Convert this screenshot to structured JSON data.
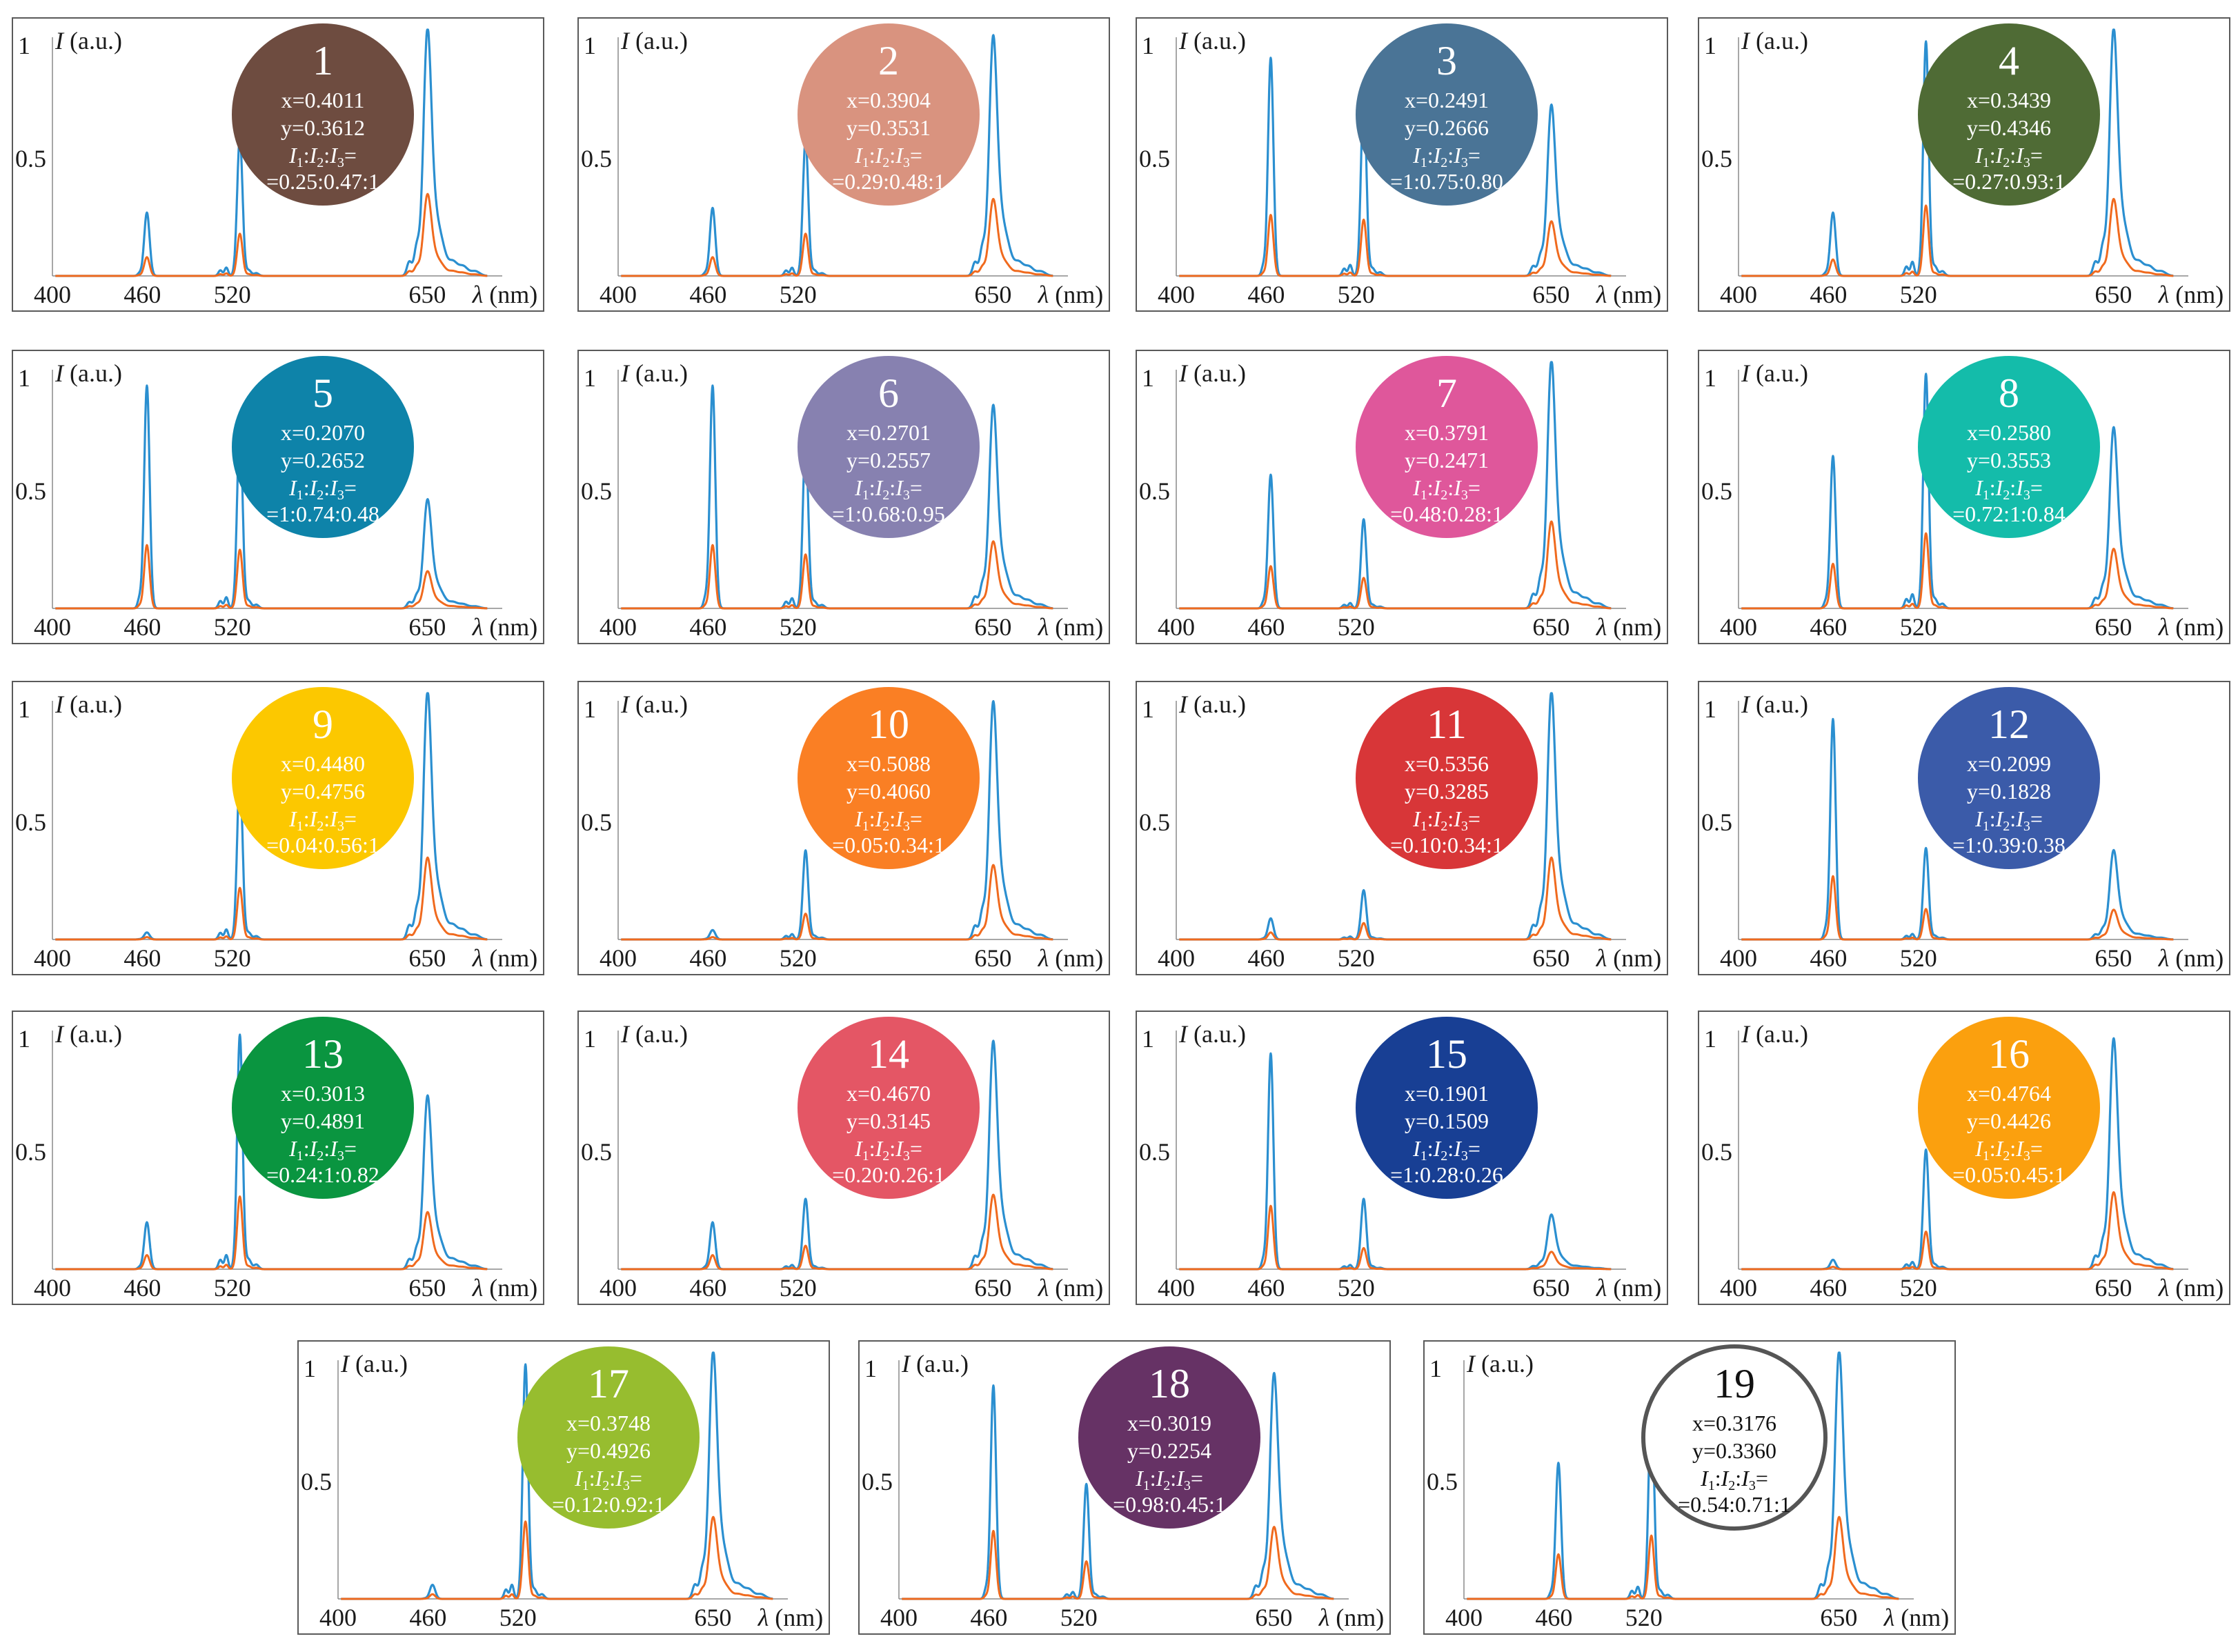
{
  "figure": {
    "y_axis_label": "I (a.u.)",
    "y_axis_label_var": "I",
    "y_axis_label_unit": " (a.u.)",
    "x_axis_label_var": "λ",
    "x_axis_label_unit": " (nm)",
    "y_ticks": [
      "1",
      "0.5"
    ],
    "x_ticks": [
      "400",
      "460",
      "520",
      "650"
    ],
    "ratio_label_symbol": "I",
    "ratio_label_indices": [
      "1",
      "2",
      "3"
    ],
    "ratio_label_suffix": "=",
    "series_colors": {
      "main": "#2b8fd0",
      "secondary": "#f06a1e"
    }
  },
  "chart_data": [
    {
      "type": "line",
      "id": "1",
      "x_label": "x=0.4011",
      "y_label": "y=0.3612",
      "ratio": "=0.25:0.47:1",
      "color": "#6e4c40",
      "text_color": "#ffffff",
      "peaks": {
        "blue": [
          0.27,
          0.59,
          1.0
        ],
        "orange": [
          0.08,
          0.18,
          0.33
        ]
      },
      "xlim": [
        400,
        700
      ],
      "ylim": [
        0,
        1
      ]
    },
    {
      "type": "line",
      "id": "2",
      "x_label": "x=0.3904",
      "y_label": "y=0.3531",
      "ratio": "=0.29:0.48:1",
      "color": "#d9937f",
      "text_color": "#ffffff",
      "peaks": {
        "blue": [
          0.29,
          0.58,
          0.97
        ],
        "orange": [
          0.08,
          0.18,
          0.31
        ]
      },
      "xlim": [
        400,
        700
      ],
      "ylim": [
        0,
        1
      ]
    },
    {
      "type": "line",
      "id": "3",
      "x_label": "x=0.2491",
      "y_label": "y=0.2666",
      "ratio": "=1:0.75:0.80",
      "color": "#4a7496",
      "text_color": "#ffffff",
      "peaks": {
        "blue": [
          0.93,
          0.78,
          0.69
        ],
        "orange": [
          0.26,
          0.24,
          0.22
        ]
      },
      "xlim": [
        400,
        700
      ],
      "ylim": [
        0,
        1
      ]
    },
    {
      "type": "line",
      "id": "4",
      "x_label": "x=0.3439",
      "y_label": "y=0.4346",
      "ratio": "=0.27:0.93:1",
      "color": "#4f6b35",
      "text_color": "#ffffff",
      "peaks": {
        "blue": [
          0.27,
          1.0,
          1.0
        ],
        "orange": [
          0.07,
          0.3,
          0.31
        ]
      },
      "xlim": [
        400,
        700
      ],
      "ylim": [
        0,
        1
      ]
    },
    {
      "type": "line",
      "id": "5",
      "x_label": "x=0.2070",
      "y_label": "y=0.2652",
      "ratio": "=1:0.74:0.48",
      "color": "#0e83a9",
      "text_color": "#ffffff",
      "peaks": {
        "blue": [
          0.95,
          0.79,
          0.44
        ],
        "orange": [
          0.27,
          0.25,
          0.15
        ]
      },
      "xlim": [
        400,
        700
      ],
      "ylim": [
        0,
        1
      ]
    },
    {
      "type": "line",
      "id": "6",
      "x_label": "x=0.2701",
      "y_label": "y=0.2557",
      "ratio": "=1:0.68:0.95",
      "color": "#8781b0",
      "text_color": "#ffffff",
      "peaks": {
        "blue": [
          0.95,
          0.72,
          0.82
        ],
        "orange": [
          0.27,
          0.23,
          0.27
        ]
      },
      "xlim": [
        400,
        700
      ],
      "ylim": [
        0,
        1
      ]
    },
    {
      "type": "line",
      "id": "7",
      "x_label": "x=0.3791",
      "y_label": "y=0.2471",
      "ratio": "=0.48:0.28:1",
      "color": "#df579b",
      "text_color": "#ffffff",
      "peaks": {
        "blue": [
          0.57,
          0.38,
          1.0
        ],
        "orange": [
          0.18,
          0.13,
          0.35
        ]
      },
      "xlim": [
        400,
        700
      ],
      "ylim": [
        0,
        1
      ]
    },
    {
      "type": "line",
      "id": "8",
      "x_label": "x=0.2580",
      "y_label": "y=0.3553",
      "ratio": "=0.72:1:0.84",
      "color": "#14bcaa",
      "text_color": "#ffffff",
      "peaks": {
        "blue": [
          0.65,
          1.0,
          0.73
        ],
        "orange": [
          0.19,
          0.32,
          0.24
        ]
      },
      "xlim": [
        400,
        700
      ],
      "ylim": [
        0,
        1
      ]
    },
    {
      "type": "line",
      "id": "9",
      "x_label": "x=0.4480",
      "y_label": "y=0.4756",
      "ratio": "=0.04:0.56:1",
      "color": "#fcc800",
      "text_color": "#ffffff",
      "peaks": {
        "blue": [
          0.03,
          0.71,
          1.0
        ],
        "orange": [
          0.01,
          0.22,
          0.33
        ]
      },
      "xlim": [
        400,
        700
      ],
      "ylim": [
        0,
        1
      ]
    },
    {
      "type": "line",
      "id": "10",
      "x_label": "x=0.5088",
      "y_label": "y=0.4060",
      "ratio": "=0.05:0.34:1",
      "color": "#fa7f24",
      "text_color": "#ffffff",
      "peaks": {
        "blue": [
          0.04,
          0.38,
          0.96
        ],
        "orange": [
          0.01,
          0.11,
          0.3
        ]
      },
      "xlim": [
        400,
        700
      ],
      "ylim": [
        0,
        1
      ]
    },
    {
      "type": "line",
      "id": "11",
      "x_label": "x=0.5356",
      "y_label": "y=0.3285",
      "ratio": "=0.10:0.34:1",
      "color": "#d83638",
      "text_color": "#ffffff",
      "peaks": {
        "blue": [
          0.09,
          0.21,
          1.0
        ],
        "orange": [
          0.03,
          0.07,
          0.33
        ]
      },
      "xlim": [
        400,
        700
      ],
      "ylim": [
        0,
        1
      ]
    },
    {
      "type": "line",
      "id": "12",
      "x_label": "x=0.2099",
      "y_label": "y=0.1828",
      "ratio": "=1:0.39:0.38",
      "color": "#3b5ba9",
      "text_color": "#ffffff",
      "peaks": {
        "blue": [
          0.94,
          0.39,
          0.36
        ],
        "orange": [
          0.27,
          0.13,
          0.12
        ]
      },
      "xlim": [
        400,
        700
      ],
      "ylim": [
        0,
        1
      ]
    },
    {
      "type": "line",
      "id": "13",
      "x_label": "x=0.3013",
      "y_label": "y=0.4891",
      "ratio": "=0.24:1:0.82",
      "color": "#0a9540",
      "text_color": "#ffffff",
      "peaks": {
        "blue": [
          0.2,
          1.0,
          0.7
        ],
        "orange": [
          0.06,
          0.31,
          0.23
        ]
      },
      "xlim": [
        400,
        700
      ],
      "ylim": [
        0,
        1
      ]
    },
    {
      "type": "line",
      "id": "14",
      "x_label": "x=0.4670",
      "y_label": "y=0.3145",
      "ratio": "=0.20:0.26:1",
      "color": "#e45665",
      "text_color": "#ffffff",
      "peaks": {
        "blue": [
          0.2,
          0.3,
          0.92
        ],
        "orange": [
          0.06,
          0.1,
          0.3
        ]
      },
      "xlim": [
        400,
        700
      ],
      "ylim": [
        0,
        1
      ]
    },
    {
      "type": "line",
      "id": "15",
      "x_label": "x=0.1901",
      "y_label": "y=0.1509",
      "ratio": "=1:0.28:0.26",
      "color": "#183f94",
      "text_color": "#ffffff",
      "peaks": {
        "blue": [
          0.92,
          0.3,
          0.22
        ],
        "orange": [
          0.27,
          0.09,
          0.07
        ]
      },
      "xlim": [
        400,
        700
      ],
      "ylim": [
        0,
        1
      ]
    },
    {
      "type": "line",
      "id": "16",
      "x_label": "x=0.4764",
      "y_label": "y=0.4426",
      "ratio": "=0.05:0.45:1",
      "color": "#fba00e",
      "text_color": "#ffffff",
      "peaks": {
        "blue": [
          0.04,
          0.51,
          0.93
        ],
        "orange": [
          0.01,
          0.16,
          0.31
        ]
      },
      "xlim": [
        400,
        700
      ],
      "ylim": [
        0,
        1
      ]
    },
    {
      "type": "line",
      "id": "17",
      "x_label": "x=0.3748",
      "y_label": "y=0.4926",
      "ratio": "=0.12:0.92:1",
      "color": "#97bd2f",
      "text_color": "#ffffff",
      "peaks": {
        "blue": [
          0.06,
          1.0,
          1.0
        ],
        "orange": [
          0.02,
          0.33,
          0.33
        ]
      },
      "xlim": [
        400,
        700
      ],
      "ylim": [
        0,
        1
      ]
    },
    {
      "type": "line",
      "id": "18",
      "x_label": "x=0.3019",
      "y_label": "y=0.2254",
      "ratio": "=0.98:0.45:1",
      "color": "#663265",
      "text_color": "#ffffff",
      "peaks": {
        "blue": [
          0.91,
          0.49,
          0.91
        ],
        "orange": [
          0.29,
          0.16,
          0.29
        ]
      },
      "xlim": [
        400,
        700
      ],
      "ylim": [
        0,
        1
      ]
    },
    {
      "type": "line",
      "id": "19",
      "x_label": "x=0.3176",
      "y_label": "y=0.3360",
      "ratio": "=0.54:0.71:1",
      "color": "#ffffff",
      "text_color": "#111111",
      "peaks": {
        "blue": [
          0.58,
          0.86,
          1.0
        ],
        "orange": [
          0.19,
          0.27,
          0.33
        ]
      },
      "xlim": [
        400,
        700
      ],
      "ylim": [
        0,
        1
      ]
    }
  ]
}
